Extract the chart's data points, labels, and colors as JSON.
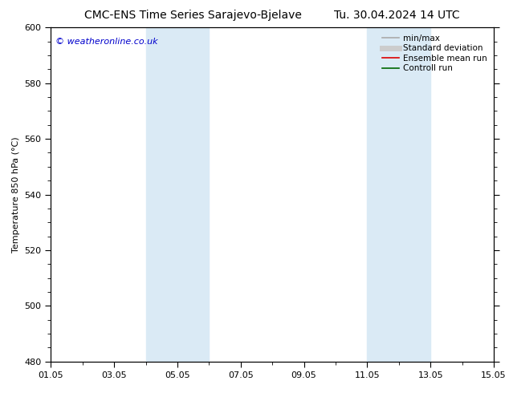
{
  "title_left": "CMC-ENS Time Series Sarajevo-Bjelave",
  "title_right": "Tu. 30.04.2024 14 UTC",
  "ylabel": "Temperature 850 hPa (°C)",
  "ylim": [
    480,
    600
  ],
  "yticks": [
    480,
    500,
    520,
    540,
    560,
    580,
    600
  ],
  "xtick_labels": [
    "01.05",
    "03.05",
    "05.05",
    "07.05",
    "09.05",
    "11.05",
    "13.05",
    "15.05"
  ],
  "xtick_positions": [
    0,
    2,
    4,
    6,
    8,
    10,
    12,
    14
  ],
  "xlim": [
    0,
    14
  ],
  "shaded_bands": [
    {
      "x_start": 3,
      "x_end": 5
    },
    {
      "x_start": 10,
      "x_end": 12
    }
  ],
  "shaded_color": "#daeaf5",
  "watermark_text": "© weatheronline.co.uk",
  "watermark_color": "#0000cc",
  "legend_items": [
    {
      "label": "min/max",
      "color": "#aaaaaa",
      "lw": 1.2
    },
    {
      "label": "Standard deviation",
      "color": "#cccccc",
      "lw": 5
    },
    {
      "label": "Ensemble mean run",
      "color": "#dd0000",
      "lw": 1.2
    },
    {
      "label": "Controll run",
      "color": "#006600",
      "lw": 1.2
    }
  ],
  "bg_color": "#ffffff",
  "spine_color": "#000000",
  "tick_color": "#000000",
  "font_size_title": 10,
  "font_size_axis": 8,
  "font_size_tick": 8,
  "font_size_legend": 7.5,
  "font_size_watermark": 8
}
